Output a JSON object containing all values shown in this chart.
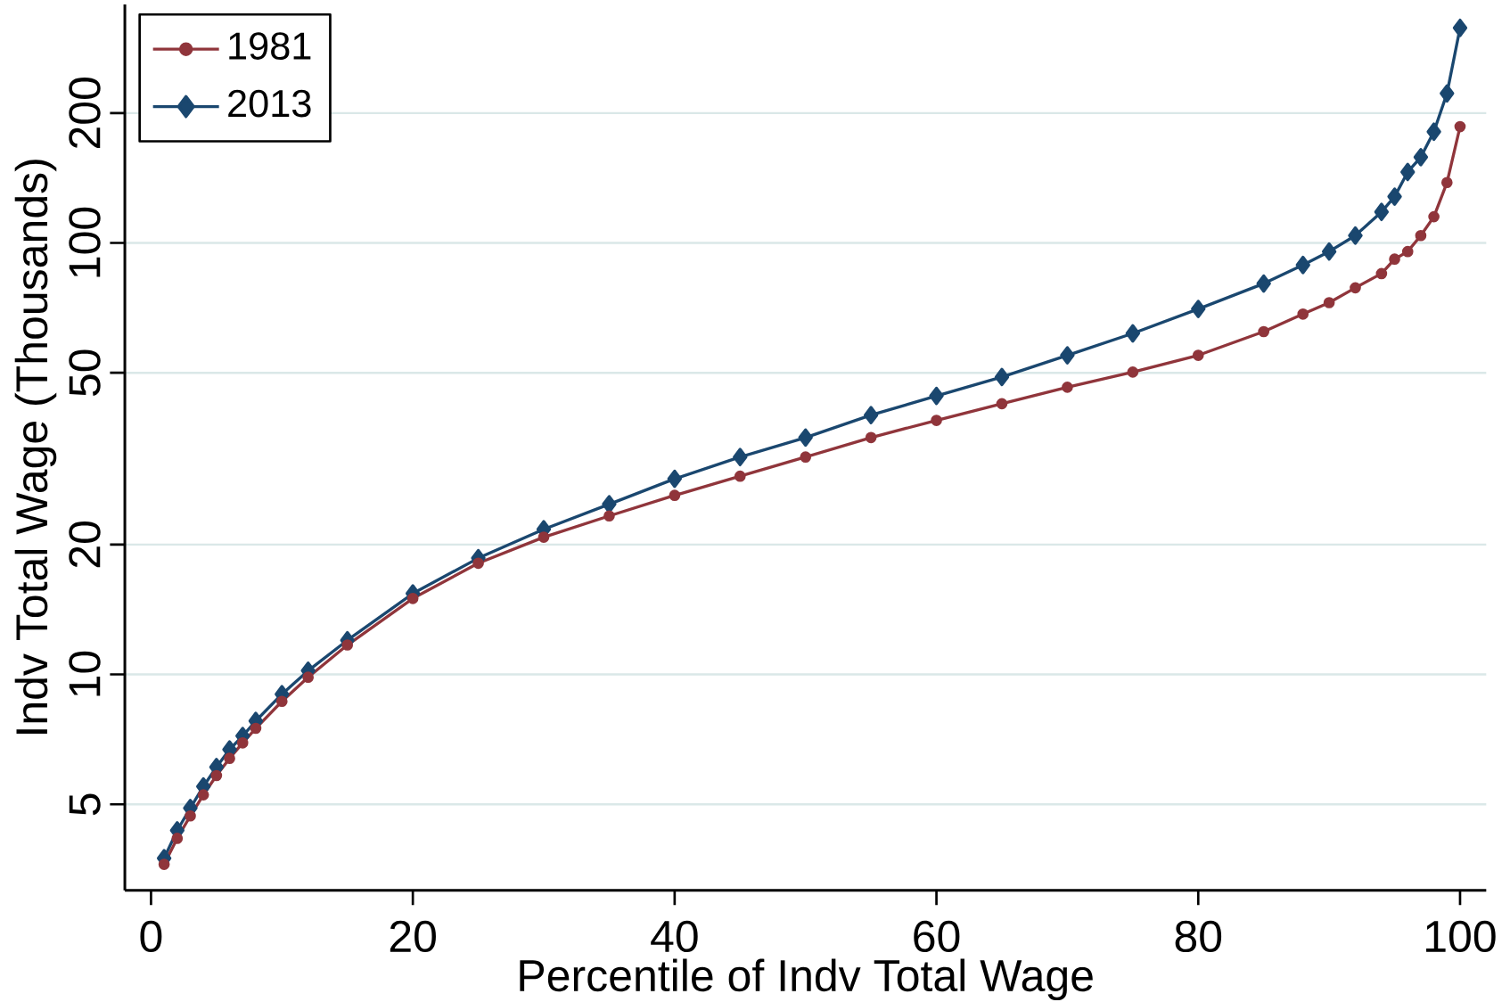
{
  "chart_data": {
    "type": "line",
    "xlabel": "Percentile of Indv Total Wage",
    "ylabel": "Indv Total Wage (Thousands)",
    "log": "y",
    "grid": "y",
    "legend": "top left",
    "xlim": [
      -2,
      102
    ],
    "xticks": [
      0,
      20,
      40,
      60,
      80,
      100
    ],
    "ylim": [
      3.16,
      357
    ],
    "yticks": [
      5,
      10,
      20,
      50,
      100,
      200
    ],
    "series": [
      {
        "name": "1981",
        "color": "#90353b",
        "marker": "circle",
        "x": [
          1,
          2,
          3,
          4,
          5,
          6,
          7,
          8,
          10,
          12,
          15,
          20,
          25,
          30,
          35,
          40,
          45,
          50,
          55,
          60,
          65,
          70,
          75,
          80,
          85,
          88,
          90,
          92,
          94,
          95,
          96,
          97,
          98,
          99,
          100
        ],
        "values": [
          3.63,
          4.17,
          4.7,
          5.26,
          5.83,
          6.39,
          6.94,
          7.5,
          8.66,
          9.85,
          11.7,
          15.0,
          18.1,
          20.8,
          23.3,
          26.0,
          28.8,
          31.9,
          35.4,
          38.8,
          42.4,
          46.3,
          50.2,
          54.9,
          62.3,
          68.4,
          72.7,
          78.7,
          84.9,
          91.7,
          95.5,
          104,
          115,
          138,
          186
        ]
      },
      {
        "name": "2013",
        "color": "#1a476f",
        "marker": "diamond",
        "x": [
          1,
          2,
          3,
          4,
          5,
          6,
          7,
          8,
          10,
          12,
          15,
          20,
          25,
          30,
          35,
          40,
          45,
          50,
          55,
          60,
          65,
          70,
          75,
          80,
          85,
          88,
          90,
          92,
          94,
          95,
          96,
          97,
          98,
          99,
          100
        ],
        "values": [
          3.75,
          4.35,
          4.9,
          5.5,
          6.1,
          6.7,
          7.2,
          7.8,
          9.0,
          10.2,
          12.0,
          15.4,
          18.6,
          21.7,
          24.8,
          28.4,
          31.9,
          35.4,
          39.9,
          44.2,
          48.9,
          54.9,
          61.7,
          70.3,
          80.5,
          88.9,
          95.5,
          104,
          118,
          128,
          146,
          158,
          181,
          222,
          315
        ]
      }
    ]
  }
}
